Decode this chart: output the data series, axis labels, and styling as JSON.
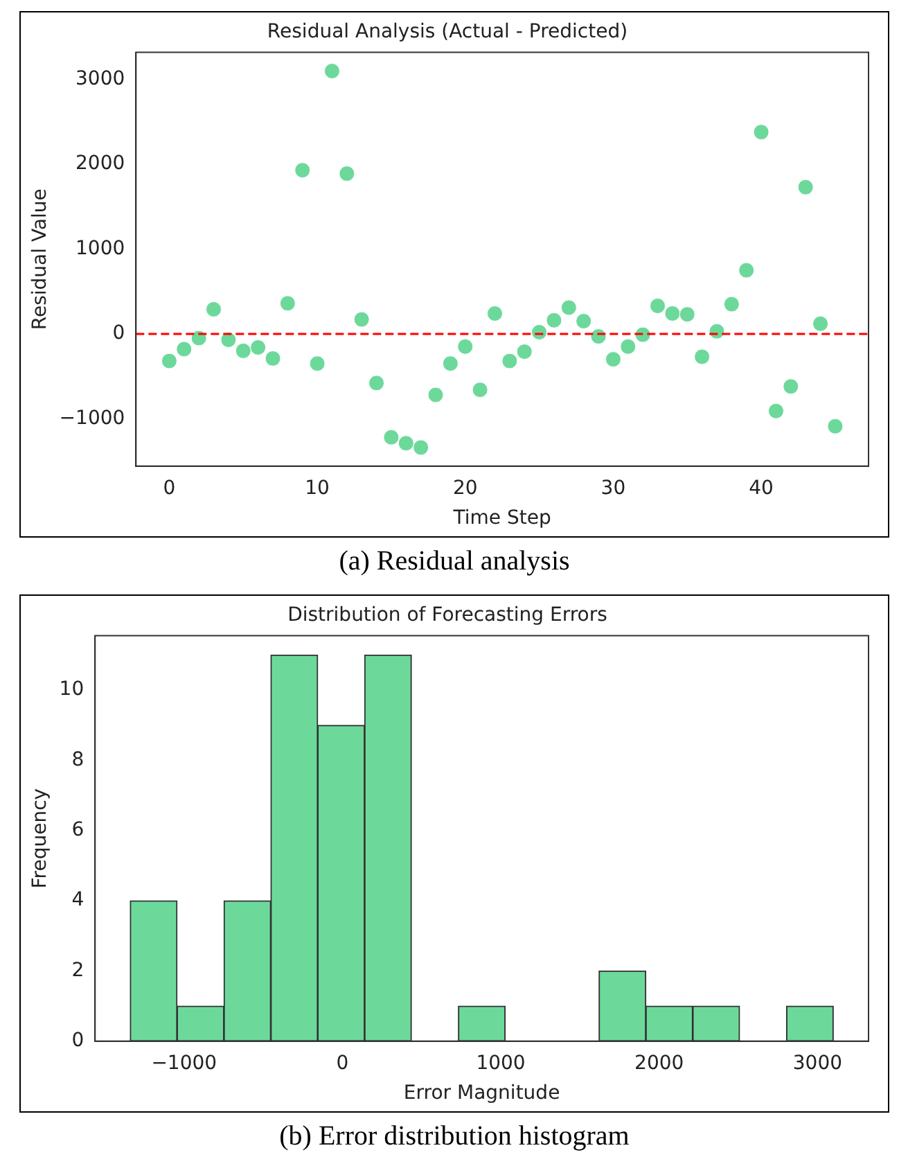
{
  "chart_data": [
    {
      "type": "scatter",
      "title": "Residual Analysis (Actual - Predicted)",
      "xlabel": "Time Step",
      "ylabel": "Residual Value",
      "x": [
        0,
        1,
        2,
        3,
        4,
        5,
        6,
        7,
        8,
        9,
        10,
        11,
        12,
        13,
        14,
        15,
        16,
        17,
        18,
        19,
        20,
        21,
        22,
        23,
        24,
        25,
        26,
        27,
        28,
        29,
        30,
        31,
        32,
        33,
        34,
        35,
        36,
        37,
        38,
        39,
        40,
        41,
        42,
        43,
        44,
        45
      ],
      "values": [
        -320,
        -180,
        -50,
        290,
        -70,
        -200,
        -160,
        -290,
        360,
        1930,
        -350,
        3100,
        1890,
        170,
        -580,
        -1220,
        -1290,
        -1340,
        -720,
        -350,
        -150,
        -660,
        240,
        -320,
        -210,
        20,
        160,
        310,
        150,
        -30,
        -300,
        -150,
        -10,
        330,
        240,
        230,
        -270,
        30,
        350,
        750,
        2380,
        -910,
        -620,
        1730,
        120,
        -1090
      ],
      "color": "#6cd99b",
      "marker": "circle",
      "xlim": [
        -2.25,
        47.25
      ],
      "xticks": [
        0,
        10,
        20,
        30,
        40
      ],
      "ylim": [
        -1560,
        3320
      ],
      "yticks": [
        -1000,
        0,
        1000,
        2000,
        3000
      ],
      "ref_lines": [
        {
          "axis": "y",
          "value": 0,
          "color": "#ff0000",
          "line_style": "dashed"
        }
      ],
      "annotations": [
        "(a) Residual analysis"
      ]
    },
    {
      "type": "histogram",
      "title": "Distribution of Forecasting Errors",
      "xlabel": "Error Magnitude",
      "ylabel": "Frequency",
      "bins": [
        -1340,
        -1044,
        -748,
        -452,
        -156,
        140,
        436,
        732,
        1028,
        1324,
        1620,
        1916,
        2212,
        2508,
        2804,
        3100
      ],
      "values": [
        4,
        1,
        4,
        11,
        9,
        11,
        0,
        1,
        0,
        0,
        2,
        1,
        1,
        0,
        1
      ],
      "color": "#6cd99b",
      "xlim": [
        -1562,
        3322
      ],
      "xticks": [
        -1000,
        0,
        1000,
        2000,
        3000
      ],
      "ylim": [
        0,
        11.55
      ],
      "yticks": [
        0,
        2,
        4,
        6,
        8,
        10
      ],
      "annotations": [
        "(b) Error distribution histogram"
      ]
    }
  ]
}
